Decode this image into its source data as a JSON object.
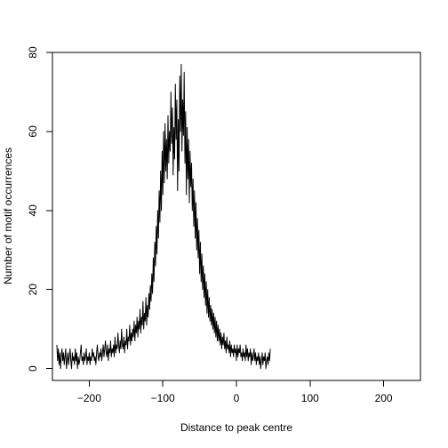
{
  "chart_data": {
    "type": "line",
    "title": "",
    "xlabel": "Distance to peak centre",
    "ylabel": "Number of motif occurrences",
    "xlim": [
      -250,
      250
    ],
    "ylim": [
      -3,
      80
    ],
    "xticks": [
      -200,
      -100,
      0,
      100,
      200
    ],
    "xtick_labels": [
      "−200",
      "−100",
      "0",
      "100",
      "200"
    ],
    "yticks": [
      0,
      20,
      40,
      60,
      80
    ],
    "ytick_labels": [
      "0",
      "20",
      "40",
      "60",
      "80"
    ],
    "grid": false,
    "legend": "none",
    "series": [
      {
        "x_start": -244,
        "x_step": 1,
        "values": [
          6,
          2,
          5,
          1,
          4,
          0,
          3,
          5,
          2,
          4,
          1,
          3,
          5,
          0,
          2,
          4,
          1,
          3,
          5,
          2,
          0,
          4,
          2,
          3,
          1,
          5,
          2,
          4,
          0,
          3,
          1,
          2,
          4,
          6,
          2,
          3,
          1,
          4,
          2,
          3,
          5,
          1,
          3,
          2,
          4,
          1,
          3,
          2,
          5,
          3,
          4,
          2,
          3,
          1,
          4,
          6,
          3,
          2,
          4,
          3,
          5,
          2,
          4,
          6,
          3,
          5,
          7,
          4,
          3,
          6,
          2,
          5,
          4,
          7,
          3,
          5,
          4,
          6,
          3,
          8,
          4,
          6,
          5,
          9,
          6,
          4,
          7,
          5,
          10,
          6,
          5,
          8,
          4,
          7,
          6,
          10,
          5,
          8,
          7,
          11,
          6,
          9,
          7,
          10,
          8,
          12,
          7,
          11,
          9,
          13,
          8,
          12,
          10,
          15,
          9,
          13,
          11,
          17,
          10,
          14,
          12,
          18,
          11,
          16,
          13,
          19,
          15,
          21,
          17,
          24,
          19,
          28,
          22,
          32,
          26,
          36,
          29,
          40,
          33,
          45,
          37,
          50,
          40,
          55,
          44,
          60,
          47,
          62,
          50,
          58,
          48,
          64,
          52,
          60,
          55,
          70,
          57,
          66,
          49,
          61,
          53,
          72,
          58,
          68,
          45,
          63,
          50,
          74,
          60,
          77,
          55,
          68,
          59,
          75,
          52,
          65,
          44,
          61,
          48,
          58,
          42,
          55,
          46,
          52,
          40,
          48,
          36,
          45,
          33,
          42,
          30,
          38,
          28,
          35,
          24,
          32,
          22,
          29,
          20,
          26,
          18,
          24,
          16,
          22,
          14,
          20,
          13,
          18,
          12,
          16,
          11,
          15,
          10,
          14,
          9,
          13,
          8,
          12,
          7,
          11,
          7,
          10,
          6,
          9,
          5,
          8,
          6,
          9,
          5,
          7,
          4,
          8,
          5,
          6,
          4,
          7,
          3,
          6,
          4,
          5,
          3,
          6,
          4,
          5,
          2,
          6,
          3,
          5,
          4,
          6,
          3,
          4,
          2,
          5,
          3,
          4,
          2,
          6,
          3,
          5,
          2,
          4,
          3,
          5,
          1,
          4,
          2,
          3,
          5,
          2,
          4,
          1,
          3,
          2,
          4,
          1,
          3,
          0,
          2,
          4,
          1,
          3,
          2,
          4,
          0,
          2,
          3,
          1,
          4,
          2,
          5
        ]
      }
    ]
  }
}
